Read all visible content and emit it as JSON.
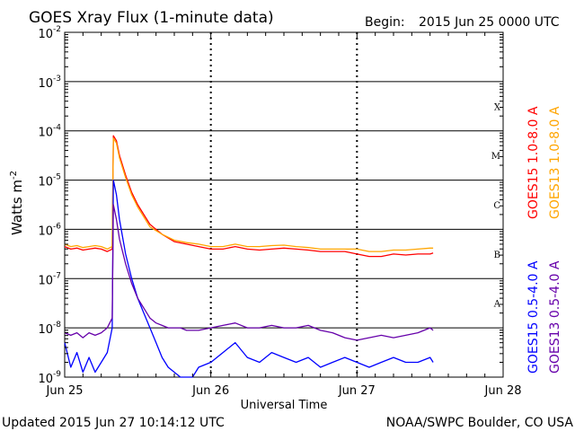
{
  "title": "GOES Xray Flux (1-minute data)",
  "begin_label": "Begin:",
  "begin_value": "2015 Jun 25 0000 UTC",
  "updated": "Updated 2015 Jun 27 10:14:12 UTC",
  "credit": "NOAA/SWPC Boulder, CO USA",
  "ylabel": "Watts m",
  "ylabel_sup": "-2",
  "colors": {
    "goes15_long": "#ff0000",
    "goes13_long": "#ffa500",
    "goes15_short": "#0000ff",
    "goes13_short": "#6600aa"
  },
  "chart_data": {
    "type": "line",
    "yscale": "log",
    "ylim": [
      1e-09,
      0.01
    ],
    "xlim": [
      0,
      72
    ],
    "xlabel": "Universal Time",
    "x_ticks": [
      {
        "x": 0,
        "label": "Jun 25"
      },
      {
        "x": 24,
        "label": "Jun 26"
      },
      {
        "x": 48,
        "label": "Jun 27"
      },
      {
        "x": 72,
        "label": "Jun 28"
      }
    ],
    "y_ticks": [
      {
        "exp": -9,
        "label": "10",
        "sup": "-9"
      },
      {
        "exp": -8,
        "label": "10",
        "sup": "-8"
      },
      {
        "exp": -7,
        "label": "10",
        "sup": "-7"
      },
      {
        "exp": -6,
        "label": "10",
        "sup": "-6"
      },
      {
        "exp": -5,
        "label": "10",
        "sup": "-5"
      },
      {
        "exp": -4,
        "label": "10",
        "sup": "-4"
      },
      {
        "exp": -3,
        "label": "10",
        "sup": "-3"
      },
      {
        "exp": -2,
        "label": "10",
        "sup": "-2"
      }
    ],
    "flare_classes": [
      {
        "label": "A",
        "exp": -7.5
      },
      {
        "label": "B",
        "exp": -6.5
      },
      {
        "label": "C",
        "exp": -5.5
      },
      {
        "label": "M",
        "exp": -4.5
      },
      {
        "label": "X",
        "exp": -3.5
      }
    ],
    "grid": true,
    "series": [
      {
        "name": "GOES15 1.0-8.0 A",
        "color": "#ff0000",
        "x": [
          0,
          1,
          2,
          3,
          4,
          5,
          6,
          7,
          7.8,
          8,
          8.5,
          9,
          10,
          11,
          12,
          13,
          14,
          16,
          18,
          20,
          22,
          24,
          26,
          28,
          30,
          32,
          34,
          36,
          38,
          40,
          42,
          44,
          46,
          48,
          50,
          52,
          54,
          56,
          58,
          60,
          60.5
        ],
        "y": [
          -6.35,
          -6.4,
          -6.38,
          -6.42,
          -6.4,
          -6.38,
          -6.4,
          -6.45,
          -6.4,
          -4.1,
          -4.2,
          -4.5,
          -4.9,
          -5.25,
          -5.5,
          -5.7,
          -5.9,
          -6.1,
          -6.25,
          -6.3,
          -6.35,
          -6.4,
          -6.4,
          -6.35,
          -6.4,
          -6.42,
          -6.4,
          -6.38,
          -6.4,
          -6.42,
          -6.45,
          -6.45,
          -6.45,
          -6.5,
          -6.55,
          -6.55,
          -6.5,
          -6.52,
          -6.5,
          -6.5,
          -6.48
        ]
      },
      {
        "name": "GOES13 1.0-8.0 A",
        "color": "#ffa500",
        "x": [
          0,
          1,
          2,
          3,
          4,
          5,
          6,
          7,
          7.8,
          8,
          8.5,
          9,
          10,
          11,
          12,
          13,
          14,
          16,
          18,
          20,
          22,
          24,
          26,
          28,
          30,
          32,
          34,
          36,
          38,
          40,
          42,
          44,
          46,
          48,
          50,
          52,
          54,
          56,
          58,
          60,
          60.5
        ],
        "y": [
          -6.3,
          -6.35,
          -6.33,
          -6.37,
          -6.35,
          -6.33,
          -6.35,
          -6.4,
          -6.35,
          -4.15,
          -4.25,
          -4.55,
          -4.95,
          -5.3,
          -5.55,
          -5.75,
          -5.95,
          -6.1,
          -6.22,
          -6.27,
          -6.3,
          -6.35,
          -6.35,
          -6.3,
          -6.35,
          -6.35,
          -6.33,
          -6.32,
          -6.35,
          -6.37,
          -6.4,
          -6.4,
          -6.4,
          -6.4,
          -6.45,
          -6.45,
          -6.42,
          -6.42,
          -6.4,
          -6.38,
          -6.38
        ]
      },
      {
        "name": "GOES15 0.5-4.0 A",
        "color": "#0000ff",
        "x": [
          0,
          1,
          2,
          3,
          4,
          5,
          6,
          7,
          7.8,
          8,
          8.5,
          9,
          10,
          11,
          12,
          13,
          14,
          15,
          16,
          17,
          18,
          19,
          20,
          21,
          22,
          24,
          26,
          28,
          30,
          32,
          34,
          36,
          38,
          40,
          42,
          44,
          46,
          48,
          50,
          52,
          54,
          56,
          58,
          60,
          60.5
        ],
        "y": [
          -8.3,
          -8.8,
          -8.5,
          -8.9,
          -8.6,
          -8.9,
          -8.7,
          -8.5,
          -8.0,
          -5.0,
          -5.3,
          -5.8,
          -6.5,
          -7.0,
          -7.4,
          -7.7,
          -8.0,
          -8.3,
          -8.6,
          -8.8,
          -8.9,
          -9.0,
          -9.0,
          -9.0,
          -8.8,
          -8.7,
          -8.5,
          -8.3,
          -8.6,
          -8.7,
          -8.5,
          -8.6,
          -8.7,
          -8.6,
          -8.8,
          -8.7,
          -8.6,
          -8.7,
          -8.8,
          -8.7,
          -8.6,
          -8.7,
          -8.7,
          -8.6,
          -8.7
        ]
      },
      {
        "name": "GOES13 0.5-4.0 A",
        "color": "#6600aa",
        "x": [
          0,
          1,
          2,
          3,
          4,
          5,
          6,
          7,
          7.8,
          8,
          8.5,
          9,
          10,
          11,
          12,
          13,
          14,
          15,
          16,
          17,
          18,
          19,
          20,
          22,
          24,
          26,
          28,
          30,
          32,
          34,
          36,
          38,
          40,
          42,
          44,
          46,
          48,
          50,
          52,
          54,
          56,
          58,
          60,
          60.5
        ],
        "y": [
          -8.1,
          -8.15,
          -8.1,
          -8.2,
          -8.1,
          -8.15,
          -8.1,
          -8.0,
          -7.8,
          -5.5,
          -5.8,
          -6.2,
          -6.7,
          -7.1,
          -7.4,
          -7.6,
          -7.8,
          -7.9,
          -7.95,
          -8.0,
          -8.0,
          -8.0,
          -8.05,
          -8.05,
          -8.0,
          -7.95,
          -7.9,
          -8.0,
          -8.0,
          -7.95,
          -8.0,
          -8.0,
          -7.95,
          -8.05,
          -8.1,
          -8.2,
          -8.25,
          -8.2,
          -8.15,
          -8.2,
          -8.15,
          -8.1,
          -8.0,
          -8.05
        ]
      }
    ]
  }
}
